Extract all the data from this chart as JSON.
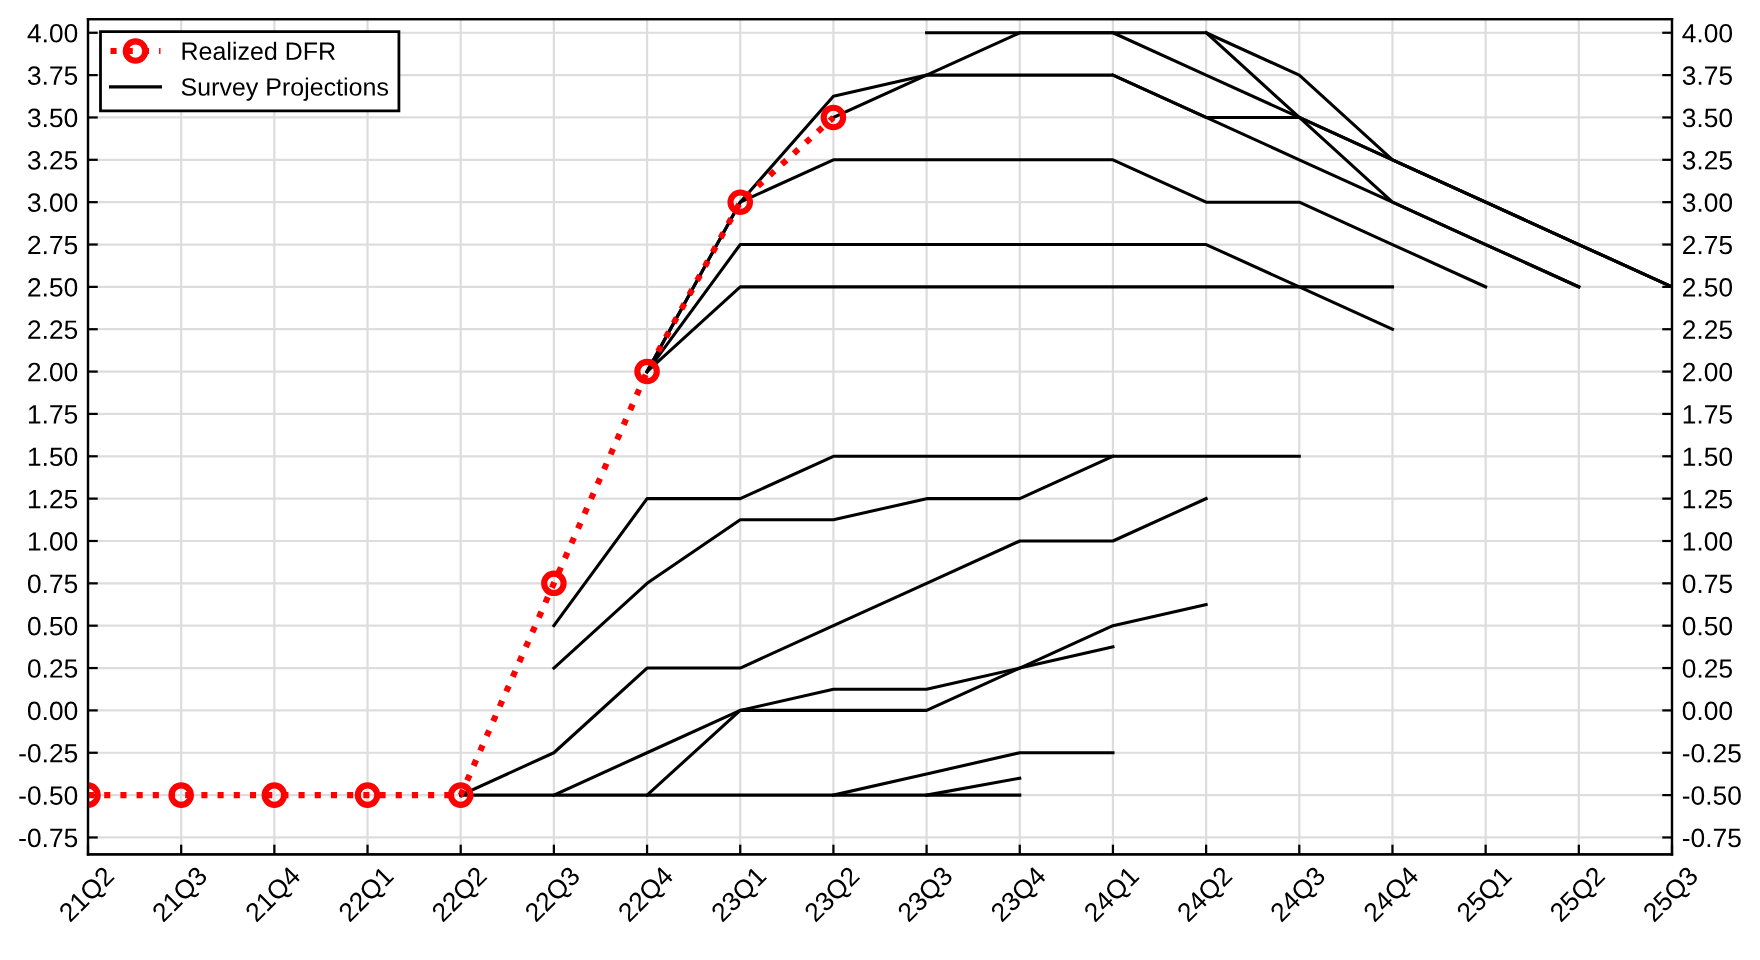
{
  "chart_data": {
    "type": "line",
    "categories": [
      "21Q2",
      "21Q3",
      "21Q4",
      "22Q1",
      "22Q2",
      "22Q3",
      "22Q4",
      "23Q1",
      "23Q2",
      "23Q3",
      "23Q4",
      "24Q1",
      "24Q2",
      "24Q3",
      "24Q4",
      "25Q1",
      "25Q2",
      "25Q3"
    ],
    "ylim": [
      -0.85,
      4.08
    ],
    "yticks": [
      {
        "value": -0.75,
        "label": "-0.75"
      },
      {
        "value": -0.5,
        "label": "-0.50"
      },
      {
        "value": -0.25,
        "label": "-0.25"
      },
      {
        "value": 0,
        "label": "0.00"
      },
      {
        "value": 0.25,
        "label": "0.25"
      },
      {
        "value": 0.5,
        "label": "0.50"
      },
      {
        "value": 0.75,
        "label": "0.75"
      },
      {
        "value": 1,
        "label": "1.00"
      },
      {
        "value": 1.25,
        "label": "1.25"
      },
      {
        "value": 1.5,
        "label": "1.50"
      },
      {
        "value": 1.75,
        "label": "1.75"
      },
      {
        "value": 2,
        "label": "2.00"
      },
      {
        "value": 2.25,
        "label": "2.25"
      },
      {
        "value": 2.5,
        "label": "2.50"
      },
      {
        "value": 2.75,
        "label": "2.75"
      },
      {
        "value": 3,
        "label": "3.00"
      },
      {
        "value": 3.25,
        "label": "3.25"
      },
      {
        "value": 3.5,
        "label": "3.50"
      },
      {
        "value": 3.75,
        "label": "3.75"
      },
      {
        "value": 4,
        "label": "4.00"
      }
    ],
    "y2lim": [
      -0.85,
      4.08
    ],
    "y2ticks": [
      {
        "value": -0.75,
        "label": "-0.75"
      },
      {
        "value": -0.5,
        "label": "-0.50"
      },
      {
        "value": -0.25,
        "label": "-0.25"
      },
      {
        "value": 0,
        "label": "0.00"
      },
      {
        "value": 0.25,
        "label": "0.25"
      },
      {
        "value": 0.5,
        "label": "0.50"
      },
      {
        "value": 0.75,
        "label": "0.75"
      },
      {
        "value": 1,
        "label": "1.00"
      },
      {
        "value": 1.25,
        "label": "1.25"
      },
      {
        "value": 1.5,
        "label": "1.50"
      },
      {
        "value": 1.75,
        "label": "1.75"
      },
      {
        "value": 2,
        "label": "2.00"
      },
      {
        "value": 2.25,
        "label": "2.25"
      },
      {
        "value": 2.5,
        "label": "2.50"
      },
      {
        "value": 2.75,
        "label": "2.75"
      },
      {
        "value": 3,
        "label": "3.00"
      },
      {
        "value": 3.25,
        "label": "3.25"
      },
      {
        "value": 3.5,
        "label": "3.50"
      },
      {
        "value": 3.75,
        "label": "3.75"
      },
      {
        "value": 4,
        "label": "4.00"
      }
    ],
    "grid": true,
    "legend": "top left",
    "series": [
      {
        "name": "Realized DFR",
        "color": "#ff0000",
        "marker": "circle",
        "line_style": "dotted",
        "values": [
          -0.5,
          -0.5,
          -0.5,
          -0.5,
          -0.5,
          0.75,
          2,
          3,
          3.5,
          null,
          null,
          null,
          null,
          null,
          null,
          null,
          null,
          null
        ]
      },
      {
        "name": "Survey Projections",
        "color": "#000000",
        "values": [
          null,
          null,
          null,
          null,
          null,
          0.5,
          1.25,
          1.25,
          1.5,
          1.5,
          1.5,
          1.5,
          1.5,
          1.5,
          null,
          null,
          null,
          null
        ]
      },
      {
        "color": "#000000",
        "values": [
          null,
          null,
          null,
          null,
          null,
          0.25,
          0.75,
          1.125,
          1.125,
          1.25,
          1.25,
          1.5,
          null,
          null,
          null,
          null,
          null,
          null
        ]
      },
      {
        "color": "#000000",
        "values": [
          null,
          null,
          null,
          null,
          -0.5,
          -0.25,
          0.25,
          0.25,
          0.5,
          0.75,
          1,
          1,
          1.25,
          null,
          null,
          null,
          null,
          null
        ]
      },
      {
        "color": "#000000",
        "values": [
          null,
          null,
          null,
          null,
          null,
          -0.5,
          -0.25,
          0,
          0.125,
          0.125,
          0.25,
          0.5,
          0.625,
          null,
          null,
          null,
          null,
          null
        ]
      },
      {
        "color": "#000000",
        "values": [
          null,
          null,
          null,
          null,
          null,
          null,
          -0.5,
          0,
          0,
          0,
          0.25,
          0.375,
          null,
          null,
          null,
          null,
          null,
          null
        ]
      },
      {
        "color": "#000000",
        "values": [
          null,
          null,
          null,
          null,
          -0.5,
          -0.5,
          -0.5,
          -0.5,
          -0.5,
          -0.5,
          -0.5,
          null,
          null,
          null,
          null,
          null,
          null,
          null
        ]
      },
      {
        "color": "#000000",
        "values": [
          null,
          null,
          null,
          null,
          null,
          null,
          null,
          null,
          -0.5,
          -0.375,
          -0.25,
          -0.25,
          null,
          null,
          null,
          null,
          null,
          null
        ]
      },
      {
        "color": "#000000",
        "values": [
          null,
          null,
          null,
          null,
          null,
          null,
          null,
          null,
          null,
          -0.5,
          -0.4,
          null,
          null,
          null,
          null,
          null,
          null,
          null
        ]
      },
      {
        "color": "#000000",
        "values": [
          null,
          null,
          null,
          null,
          null,
          null,
          2,
          2.75,
          2.75,
          2.75,
          2.75,
          2.75,
          2.75,
          2.5,
          2.25,
          null,
          null,
          null
        ]
      },
      {
        "color": "#000000",
        "values": [
          null,
          null,
          null,
          null,
          null,
          null,
          2,
          2.5,
          2.5,
          2.5,
          2.5,
          2.5,
          2.5,
          2.5,
          2.5,
          null,
          null,
          null
        ]
      },
      {
        "color": "#000000",
        "values": [
          null,
          null,
          null,
          null,
          null,
          null,
          2,
          3,
          3.25,
          3.25,
          3.25,
          3.25,
          3,
          3,
          2.75,
          2.5,
          null,
          null
        ]
      },
      {
        "color": "#000000",
        "values": [
          null,
          null,
          null,
          null,
          null,
          null,
          2,
          3,
          3.625,
          3.75,
          3.75,
          3.75,
          3.5,
          3.5,
          3.25,
          3,
          2.75,
          2.5
        ]
      },
      {
        "color": "#000000",
        "values": [
          null,
          null,
          null,
          null,
          null,
          null,
          null,
          null,
          null,
          null,
          null,
          3.75,
          3.5,
          3.25,
          3,
          2.75,
          2.5,
          null
        ]
      },
      {
        "color": "#000000",
        "values": [
          null,
          null,
          null,
          null,
          null,
          null,
          null,
          null,
          3.5,
          3.75,
          4,
          4,
          3.75,
          3.5,
          3.25,
          3,
          2.75,
          2.5
        ]
      },
      {
        "color": "#000000",
        "values": [
          null,
          null,
          null,
          null,
          null,
          null,
          null,
          null,
          null,
          4,
          4,
          4,
          4,
          3.75,
          3.25,
          3,
          2.75,
          2.5
        ]
      },
      {
        "color": "#000000",
        "values": [
          null,
          null,
          null,
          null,
          null,
          null,
          null,
          null,
          null,
          null,
          null,
          null,
          4,
          3.5,
          3,
          2.75,
          2.5,
          null
        ]
      }
    ]
  }
}
